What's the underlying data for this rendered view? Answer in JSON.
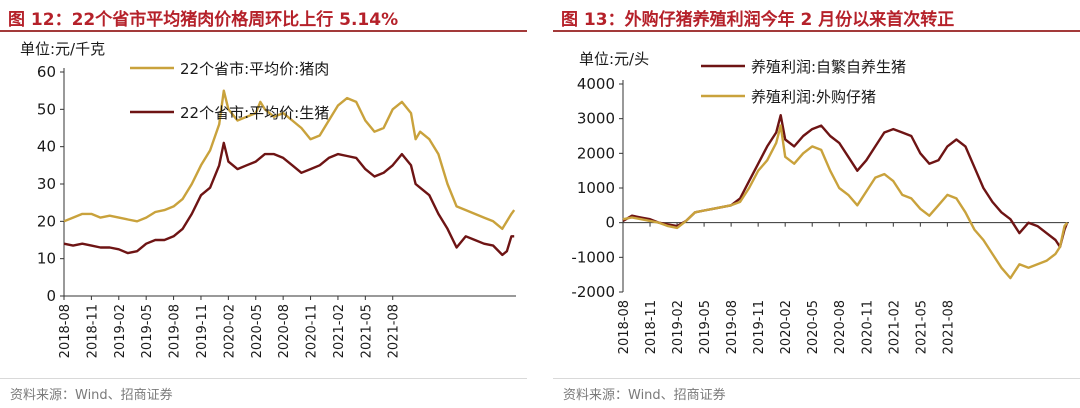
{
  "colors": {
    "title": "#b5212a",
    "gold": "#c9a23c",
    "maroon": "#6e1414",
    "axis": "#333333"
  },
  "charts": [
    {
      "title": "图 12：22个省市平均猪肉价格周环比上行 5.14%",
      "unit": "单位:元/千克",
      "source": "资料来源：Wind、招商证券",
      "chart_data": {
        "type": "line",
        "x_labels": [
          "2018-08",
          "2018-11",
          "2019-02",
          "2019-05",
          "2019-08",
          "2019-11",
          "2020-02",
          "2020-05",
          "2020-08",
          "2020-11",
          "2021-02",
          "2021-05",
          "2021-08"
        ],
        "x_start": "2018-08",
        "x_end": "2022-01",
        "ylim": [
          0,
          60
        ],
        "yticks": [
          0,
          10,
          20,
          30,
          40,
          50,
          60
        ],
        "series": [
          {
            "name": "22个省市:平均价:猪肉",
            "color": "#c9a23c",
            "points": [
              [
                0,
                20
              ],
              [
                1,
                21
              ],
              [
                2,
                22
              ],
              [
                3,
                22
              ],
              [
                4,
                21
              ],
              [
                5,
                21.5
              ],
              [
                6,
                21
              ],
              [
                7,
                20.5
              ],
              [
                8,
                20
              ],
              [
                9,
                21
              ],
              [
                10,
                22.5
              ],
              [
                11,
                23
              ],
              [
                12,
                24
              ],
              [
                13,
                26
              ],
              [
                14,
                30
              ],
              [
                15,
                35
              ],
              [
                16,
                39
              ],
              [
                17,
                46
              ],
              [
                17.5,
                55
              ],
              [
                18,
                50
              ],
              [
                19,
                47
              ],
              [
                20,
                48
              ],
              [
                21,
                49
              ],
              [
                21.5,
                52
              ],
              [
                22,
                50
              ],
              [
                23,
                48
              ],
              [
                24,
                49
              ],
              [
                25,
                47
              ],
              [
                26,
                45
              ],
              [
                27,
                42
              ],
              [
                28,
                43
              ],
              [
                29,
                47
              ],
              [
                30,
                51
              ],
              [
                31,
                53
              ],
              [
                32,
                52
              ],
              [
                33,
                47
              ],
              [
                34,
                44
              ],
              [
                35,
                45
              ],
              [
                36,
                50
              ],
              [
                37,
                52
              ],
              [
                38,
                49
              ],
              [
                38.5,
                42
              ],
              [
                39,
                44
              ],
              [
                40,
                42
              ],
              [
                41,
                38
              ],
              [
                42,
                30
              ],
              [
                43,
                24
              ],
              [
                44,
                23
              ],
              [
                45,
                22
              ],
              [
                46,
                21
              ],
              [
                47,
                20
              ],
              [
                48,
                18
              ],
              [
                49,
                22
              ],
              [
                49.3,
                23
              ]
            ]
          },
          {
            "name": "22个省市:平均价:生猪",
            "color": "#6e1414",
            "points": [
              [
                0,
                14
              ],
              [
                1,
                13.5
              ],
              [
                2,
                14
              ],
              [
                3,
                13.5
              ],
              [
                4,
                13
              ],
              [
                5,
                13
              ],
              [
                6,
                12.5
              ],
              [
                7,
                11.5
              ],
              [
                8,
                12
              ],
              [
                9,
                14
              ],
              [
                10,
                15
              ],
              [
                11,
                15
              ],
              [
                12,
                16
              ],
              [
                13,
                18
              ],
              [
                14,
                22
              ],
              [
                15,
                27
              ],
              [
                16,
                29
              ],
              [
                17,
                35
              ],
              [
                17.5,
                41
              ],
              [
                18,
                36
              ],
              [
                19,
                34
              ],
              [
                20,
                35
              ],
              [
                21,
                36
              ],
              [
                22,
                38
              ],
              [
                23,
                38
              ],
              [
                24,
                37
              ],
              [
                25,
                35
              ],
              [
                26,
                33
              ],
              [
                27,
                34
              ],
              [
                28,
                35
              ],
              [
                29,
                37
              ],
              [
                30,
                38
              ],
              [
                31,
                37.5
              ],
              [
                32,
                37
              ],
              [
                33,
                34
              ],
              [
                34,
                32
              ],
              [
                35,
                33
              ],
              [
                36,
                35
              ],
              [
                37,
                38
              ],
              [
                38,
                35
              ],
              [
                38.5,
                30
              ],
              [
                39,
                29
              ],
              [
                40,
                27
              ],
              [
                41,
                22
              ],
              [
                42,
                18
              ],
              [
                43,
                13
              ],
              [
                44,
                16
              ],
              [
                45,
                15
              ],
              [
                46,
                14
              ],
              [
                47,
                13.5
              ],
              [
                48,
                11
              ],
              [
                48.5,
                12
              ],
              [
                49,
                16
              ],
              [
                49.3,
                16
              ]
            ]
          }
        ]
      }
    },
    {
      "title": "图 13：外购仔猪养殖利润今年 2 月份以来首次转正",
      "unit": "单位:元/头",
      "source": "资料来源：Wind、招商证券",
      "chart_data": {
        "type": "line",
        "x_labels": [
          "2018-08",
          "2018-11",
          "2019-02",
          "2019-05",
          "2019-08",
          "2019-11",
          "2020-02",
          "2020-05",
          "2020-08",
          "2020-11",
          "2021-02",
          "2021-05",
          "2021-08"
        ],
        "x_start": "2018-08",
        "x_end": "2022-01",
        "ylim": [
          -2000,
          4000
        ],
        "yticks": [
          -2000,
          -1000,
          0,
          1000,
          2000,
          3000,
          4000
        ],
        "series": [
          {
            "name": "养殖利润:自繁自养生猪",
            "color": "#6e1414",
            "points": [
              [
                0,
                50
              ],
              [
                1,
                200
              ],
              [
                2,
                150
              ],
              [
                3,
                100
              ],
              [
                4,
                0
              ],
              [
                5,
                -50
              ],
              [
                6,
                -100
              ],
              [
                7,
                50
              ],
              [
                8,
                300
              ],
              [
                9,
                350
              ],
              [
                10,
                400
              ],
              [
                11,
                450
              ],
              [
                12,
                500
              ],
              [
                13,
                700
              ],
              [
                14,
                1200
              ],
              [
                15,
                1700
              ],
              [
                16,
                2200
              ],
              [
                17,
                2600
              ],
              [
                17.5,
                3100
              ],
              [
                18,
                2400
              ],
              [
                19,
                2200
              ],
              [
                20,
                2500
              ],
              [
                21,
                2700
              ],
              [
                22,
                2800
              ],
              [
                23,
                2500
              ],
              [
                24,
                2300
              ],
              [
                25,
                1900
              ],
              [
                26,
                1500
              ],
              [
                27,
                1800
              ],
              [
                28,
                2200
              ],
              [
                29,
                2600
              ],
              [
                30,
                2700
              ],
              [
                31,
                2600
              ],
              [
                32,
                2500
              ],
              [
                33,
                2000
              ],
              [
                34,
                1700
              ],
              [
                35,
                1800
              ],
              [
                36,
                2200
              ],
              [
                37,
                2400
              ],
              [
                38,
                2200
              ],
              [
                39,
                1600
              ],
              [
                40,
                1000
              ],
              [
                41,
                600
              ],
              [
                42,
                300
              ],
              [
                43,
                100
              ],
              [
                44,
                -300
              ],
              [
                45,
                0
              ],
              [
                46,
                -100
              ],
              [
                47,
                -300
              ],
              [
                48,
                -500
              ],
              [
                48.5,
                -700
              ],
              [
                49,
                -200
              ],
              [
                49.3,
                0
              ]
            ]
          },
          {
            "name": "养殖利润:外购仔猪",
            "color": "#c9a23c",
            "points": [
              [
                0,
                100
              ],
              [
                1,
                150
              ],
              [
                2,
                100
              ],
              [
                3,
                50
              ],
              [
                4,
                0
              ],
              [
                5,
                -100
              ],
              [
                6,
                -150
              ],
              [
                7,
                50
              ],
              [
                8,
                300
              ],
              [
                9,
                350
              ],
              [
                10,
                400
              ],
              [
                11,
                450
              ],
              [
                12,
                500
              ],
              [
                13,
                600
              ],
              [
                14,
                1000
              ],
              [
                15,
                1500
              ],
              [
                16,
                1800
              ],
              [
                17,
                2300
              ],
              [
                17.5,
                2800
              ],
              [
                18,
                1900
              ],
              [
                19,
                1700
              ],
              [
                20,
                2000
              ],
              [
                21,
                2200
              ],
              [
                22,
                2100
              ],
              [
                23,
                1500
              ],
              [
                24,
                1000
              ],
              [
                25,
                800
              ],
              [
                26,
                500
              ],
              [
                27,
                900
              ],
              [
                28,
                1300
              ],
              [
                29,
                1400
              ],
              [
                30,
                1200
              ],
              [
                31,
                800
              ],
              [
                32,
                700
              ],
              [
                33,
                400
              ],
              [
                34,
                200
              ],
              [
                35,
                500
              ],
              [
                36,
                800
              ],
              [
                37,
                700
              ],
              [
                38,
                300
              ],
              [
                39,
                -200
              ],
              [
                40,
                -500
              ],
              [
                41,
                -900
              ],
              [
                42,
                -1300
              ],
              [
                43,
                -1600
              ],
              [
                44,
                -1200
              ],
              [
                45,
                -1300
              ],
              [
                46,
                -1200
              ],
              [
                47,
                -1100
              ],
              [
                48,
                -900
              ],
              [
                48.5,
                -700
              ],
              [
                49,
                -100
              ],
              [
                49.3,
                0
              ]
            ]
          }
        ]
      }
    }
  ]
}
